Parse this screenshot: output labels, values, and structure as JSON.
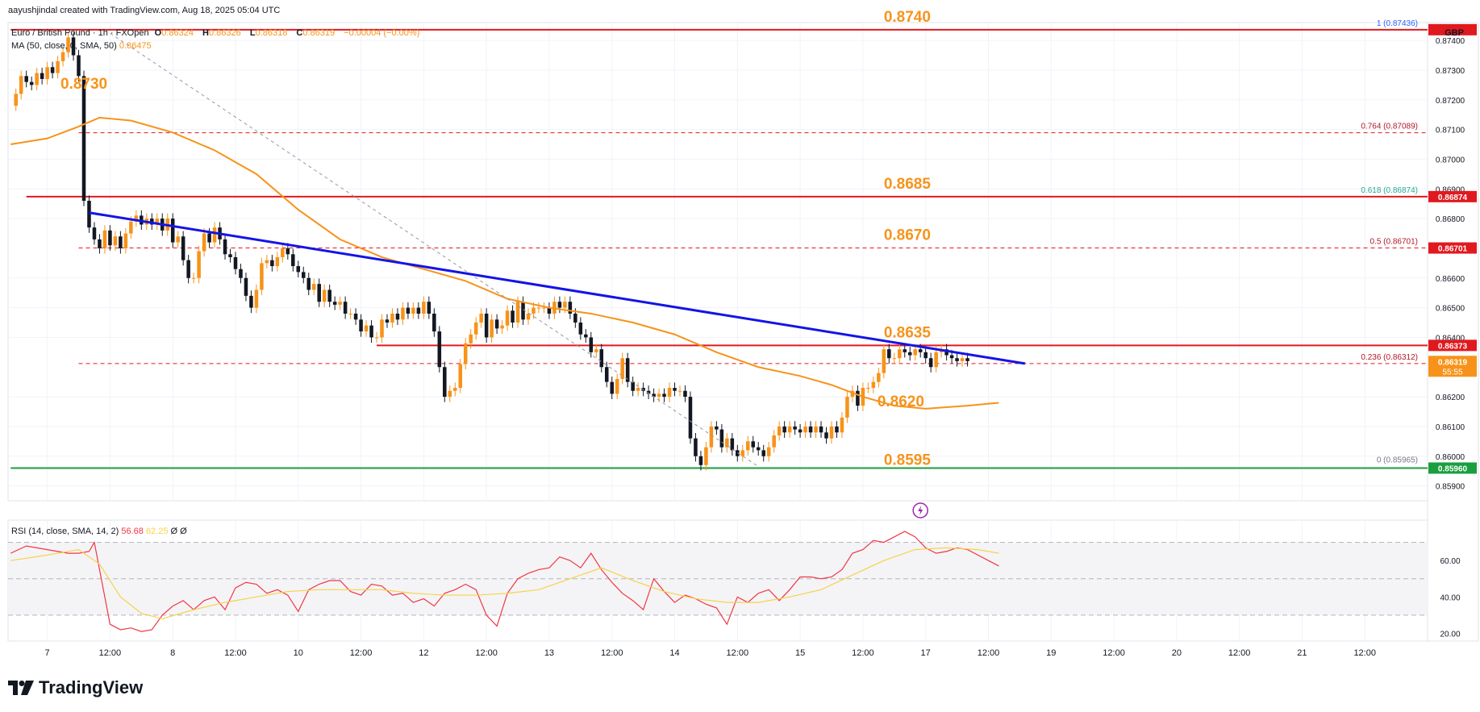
{
  "header": {
    "attribution": "aayushjindal created with TradingView.com, Aug 18, 2025 05:04 UTC",
    "symbol": "Euro / British Pound · 1h · FXOpen",
    "ohlc": {
      "o_label": "O",
      "o": "0.86324",
      "h_label": "H",
      "h": "0.86326",
      "l_label": "L",
      "l": "0.86318",
      "c_label": "C",
      "c": "0.86319",
      "change": "−0.00004 (−0.00%)"
    },
    "ma_label": "MA (50, close, 0, SMA, 50)",
    "ma_value": "0.86475",
    "currency": "GBP"
  },
  "rsi_legend": {
    "label": "RSI (14, close, SMA, 14, 2)",
    "rsi": "56.68",
    "ma": "62.25",
    "x1": "Ø",
    "x2": "Ø"
  },
  "logo": {
    "text": "TradingView"
  },
  "colors": {
    "bull": "#f7931a",
    "bear": "#131722",
    "ma": "#f7931a",
    "resistance": "#e0191f",
    "support": "#1b9e3e",
    "trend": "#1414e6",
    "rsi": "#f23645",
    "rsi_ma": "#f7d24a",
    "level_text": "#f7931a",
    "fib_red": "#b2182b",
    "fib_green": "#22ab94",
    "fib_blue": "#2962ff"
  },
  "chart_data": {
    "type": "candlestick",
    "instrument": "EUR/GBP",
    "timeframe": "1h",
    "ylim": [
      0.8585,
      0.8746
    ],
    "y_ticks": [
      "0.87400",
      "0.87300",
      "0.87200",
      "0.87100",
      "0.87000",
      "0.86900",
      "0.86800",
      "0.86600",
      "0.86500",
      "0.86400",
      "0.86200",
      "0.86100",
      "0.86000",
      "0.85900"
    ],
    "x_ticks": [
      {
        "label": "7",
        "t": 0
      },
      {
        "label": "12:00",
        "t": 12
      },
      {
        "label": "8",
        "t": 24
      },
      {
        "label": "12:00",
        "t": 36
      },
      {
        "label": "10",
        "t": 48
      },
      {
        "label": "12:00",
        "t": 60
      },
      {
        "label": "12",
        "t": 72
      },
      {
        "label": "12:00",
        "t": 84
      },
      {
        "label": "13",
        "t": 96
      },
      {
        "label": "12:00",
        "t": 108
      },
      {
        "label": "14",
        "t": 120
      },
      {
        "label": "12:00",
        "t": 132
      },
      {
        "label": "15",
        "t": 144
      },
      {
        "label": "12:00",
        "t": 156
      },
      {
        "label": "17",
        "t": 168
      },
      {
        "label": "12:00",
        "t": 180
      },
      {
        "label": "19",
        "t": 192
      },
      {
        "label": "12:00",
        "t": 204
      },
      {
        "label": "20",
        "t": 216
      },
      {
        "label": "12:00",
        "t": 228
      },
      {
        "label": "21",
        "t": 240
      },
      {
        "label": "12:00",
        "t": 252
      }
    ],
    "t_range": [
      -7.5,
      264
    ],
    "close_series": [
      0.8718,
      0.8722,
      0.8728,
      0.8726,
      0.8725,
      0.8729,
      0.8727,
      0.8731,
      0.8729,
      0.8733,
      0.8736,
      0.8741,
      0.8735,
      0.8728,
      0.8686,
      0.8677,
      0.8673,
      0.867,
      0.8676,
      0.8671,
      0.8674,
      0.867,
      0.8675,
      0.8679,
      0.8681,
      0.8678,
      0.868,
      0.8678,
      0.868,
      0.8676,
      0.868,
      0.8672,
      0.8674,
      0.8666,
      0.866,
      0.866,
      0.8669,
      0.8675,
      0.8672,
      0.8677,
      0.8673,
      0.8668,
      0.8667,
      0.8663,
      0.866,
      0.8654,
      0.865,
      0.8656,
      0.8665,
      0.8666,
      0.8664,
      0.8667,
      0.867,
      0.8668,
      0.8664,
      0.8662,
      0.866,
      0.8656,
      0.8658,
      0.8652,
      0.8656,
      0.8652,
      0.8651,
      0.8652,
      0.8648,
      0.8648,
      0.8646,
      0.8642,
      0.8644,
      0.864,
      0.864,
      0.8646,
      0.8645,
      0.8648,
      0.8646,
      0.865,
      0.8648,
      0.865,
      0.8648,
      0.8652,
      0.8648,
      0.8642,
      0.863,
      0.862,
      0.8622,
      0.8623,
      0.8631,
      0.8638,
      0.8641,
      0.8645,
      0.8648,
      0.864,
      0.8646,
      0.8643,
      0.8644,
      0.8649,
      0.8645,
      0.8652,
      0.8646,
      0.8648,
      0.865,
      0.865,
      0.865,
      0.8648,
      0.8652,
      0.865,
      0.8652,
      0.8648,
      0.8645,
      0.8641,
      0.864,
      0.8635,
      0.8636,
      0.863,
      0.8625,
      0.8621,
      0.8626,
      0.8633,
      0.8625,
      0.8622,
      0.8623,
      0.8622,
      0.8621,
      0.862,
      0.8621,
      0.862,
      0.8623,
      0.8622,
      0.8622,
      0.862,
      0.8606,
      0.86,
      0.8597,
      0.8603,
      0.861,
      0.8609,
      0.8603,
      0.8606,
      0.8602,
      0.86,
      0.8602,
      0.8605,
      0.8603,
      0.8602,
      0.86,
      0.8603,
      0.8607,
      0.861,
      0.8608,
      0.861,
      0.8609,
      0.8608,
      0.861,
      0.8608,
      0.861,
      0.8608,
      0.8606,
      0.861,
      0.8608,
      0.8613,
      0.862,
      0.8622,
      0.8617,
      0.8623,
      0.8623,
      0.8625,
      0.8628,
      0.8636,
      0.8633,
      0.8633,
      0.8636,
      0.8635,
      0.8634,
      0.8636,
      0.8635,
      0.8633,
      0.863,
      0.8635,
      0.8636,
      0.8634,
      0.8633,
      0.8632,
      0.8633,
      0.8632
    ],
    "ma50_series": [
      [
        -7,
        0.8705
      ],
      [
        0,
        0.8707
      ],
      [
        6,
        0.8711
      ],
      [
        10,
        0.8714
      ],
      [
        16,
        0.8713
      ],
      [
        24,
        0.8709
      ],
      [
        32,
        0.8703
      ],
      [
        40,
        0.8695
      ],
      [
        48,
        0.8683
      ],
      [
        56,
        0.8673
      ],
      [
        64,
        0.8667
      ],
      [
        72,
        0.8663
      ],
      [
        80,
        0.8659
      ],
      [
        88,
        0.8653
      ],
      [
        96,
        0.865
      ],
      [
        104,
        0.8648
      ],
      [
        112,
        0.8645
      ],
      [
        120,
        0.8641
      ],
      [
        128,
        0.8635
      ],
      [
        136,
        0.863
      ],
      [
        144,
        0.8627
      ],
      [
        150,
        0.8624
      ],
      [
        156,
        0.862
      ],
      [
        162,
        0.8617
      ],
      [
        168,
        0.8616
      ],
      [
        176,
        0.8617
      ],
      [
        182,
        0.8618
      ]
    ],
    "rsi_series": [
      [
        -7,
        64
      ],
      [
        -4,
        68
      ],
      [
        0,
        66
      ],
      [
        2,
        65
      ],
      [
        4,
        64
      ],
      [
        6,
        64
      ],
      [
        8,
        65
      ],
      [
        9,
        70
      ],
      [
        10,
        55
      ],
      [
        11,
        40
      ],
      [
        12,
        25
      ],
      [
        14,
        22
      ],
      [
        16,
        23
      ],
      [
        18,
        21
      ],
      [
        20,
        22
      ],
      [
        22,
        30
      ],
      [
        24,
        35
      ],
      [
        26,
        38
      ],
      [
        28,
        33
      ],
      [
        30,
        38
      ],
      [
        32,
        40
      ],
      [
        34,
        33
      ],
      [
        36,
        45
      ],
      [
        38,
        48
      ],
      [
        40,
        47
      ],
      [
        42,
        42
      ],
      [
        44,
        44
      ],
      [
        46,
        41
      ],
      [
        48,
        32
      ],
      [
        50,
        44
      ],
      [
        52,
        47
      ],
      [
        54,
        49
      ],
      [
        56,
        49
      ],
      [
        58,
        43
      ],
      [
        60,
        41
      ],
      [
        62,
        47
      ],
      [
        64,
        46
      ],
      [
        66,
        41
      ],
      [
        68,
        42
      ],
      [
        70,
        37
      ],
      [
        72,
        39
      ],
      [
        74,
        35
      ],
      [
        76,
        42
      ],
      [
        78,
        44
      ],
      [
        80,
        47
      ],
      [
        82,
        44
      ],
      [
        84,
        30
      ],
      [
        86,
        24
      ],
      [
        88,
        42
      ],
      [
        90,
        50
      ],
      [
        92,
        53
      ],
      [
        94,
        55
      ],
      [
        96,
        56
      ],
      [
        98,
        62
      ],
      [
        100,
        60
      ],
      [
        102,
        56
      ],
      [
        104,
        64
      ],
      [
        106,
        55
      ],
      [
        108,
        48
      ],
      [
        110,
        42
      ],
      [
        112,
        38
      ],
      [
        114,
        33
      ],
      [
        116,
        50
      ],
      [
        118,
        43
      ],
      [
        120,
        37
      ],
      [
        122,
        41
      ],
      [
        124,
        39
      ],
      [
        126,
        36
      ],
      [
        128,
        34
      ],
      [
        130,
        25
      ],
      [
        132,
        40
      ],
      [
        134,
        37
      ],
      [
        136,
        42
      ],
      [
        138,
        44
      ],
      [
        140,
        38
      ],
      [
        142,
        44
      ],
      [
        144,
        51
      ],
      [
        146,
        51
      ],
      [
        148,
        50
      ],
      [
        150,
        51
      ],
      [
        152,
        55
      ],
      [
        154,
        64
      ],
      [
        156,
        66
      ],
      [
        158,
        71
      ],
      [
        160,
        70
      ],
      [
        162,
        73
      ],
      [
        164,
        76
      ],
      [
        166,
        73
      ],
      [
        168,
        67
      ],
      [
        170,
        64
      ],
      [
        172,
        65
      ],
      [
        174,
        67
      ],
      [
        176,
        66
      ],
      [
        178,
        63
      ],
      [
        180,
        60
      ],
      [
        182,
        57
      ]
    ],
    "rsi_ma_series": [
      [
        -7,
        60
      ],
      [
        0,
        63
      ],
      [
        6,
        66
      ],
      [
        10,
        58
      ],
      [
        14,
        40
      ],
      [
        18,
        31
      ],
      [
        22,
        28
      ],
      [
        28,
        33
      ],
      [
        34,
        37
      ],
      [
        40,
        40
      ],
      [
        46,
        43
      ],
      [
        52,
        44
      ],
      [
        58,
        44
      ],
      [
        64,
        44
      ],
      [
        70,
        42
      ],
      [
        76,
        41
      ],
      [
        82,
        41
      ],
      [
        88,
        42
      ],
      [
        94,
        44
      ],
      [
        100,
        50
      ],
      [
        106,
        56
      ],
      [
        112,
        49
      ],
      [
        118,
        43
      ],
      [
        124,
        39
      ],
      [
        130,
        37
      ],
      [
        136,
        37
      ],
      [
        142,
        40
      ],
      [
        148,
        44
      ],
      [
        154,
        52
      ],
      [
        160,
        60
      ],
      [
        166,
        66
      ],
      [
        172,
        67
      ],
      [
        178,
        66
      ],
      [
        182,
        64
      ]
    ],
    "rsi_ylim": [
      18,
      80
    ],
    "rsi_ticks": [
      "60.00",
      "40.00",
      "20.00"
    ],
    "rsi_levels": [
      70,
      50,
      30
    ],
    "levels": [
      {
        "text": "0.8740",
        "price": 0.87436,
        "t_from": -7,
        "kind": "resistance",
        "label_t": 160
      },
      {
        "text": "0.8730",
        "price": 0.873,
        "t_from": -1,
        "kind": "marker",
        "label_t": -1
      },
      {
        "text": "0.8685",
        "price": 0.86874,
        "t_from": -4,
        "kind": "resistance",
        "label_t": 160
      },
      {
        "text": "0.8670",
        "price": 0.86701,
        "t_from": 6,
        "kind": "dash",
        "label_t": 160
      },
      {
        "text": "0.8635",
        "price": 0.86373,
        "t_from": 63,
        "kind": "resistance",
        "label_t": 160
      },
      {
        "text": "0.8620",
        "price": 0.862,
        "t_from": null,
        "kind": "ma",
        "label_t": 160
      },
      {
        "text": "0.8595",
        "price": 0.8596,
        "t_from": -7,
        "kind": "support",
        "label_t": 160
      }
    ],
    "fib": [
      {
        "label": "1 (0.87436)",
        "price": 0.87436,
        "color": "#2962ff"
      },
      {
        "label": "0.764 (0.87089)",
        "price": 0.87089,
        "color": "#b2182b"
      },
      {
        "label": "0.618 (0.86874)",
        "price": 0.86874,
        "color": "#22ab94"
      },
      {
        "label": "0.5 (0.86701)",
        "price": 0.86701,
        "color": "#b2182b"
      },
      {
        "label": "0.236 (0.86312)",
        "price": 0.86312,
        "color": "#b2182b"
      },
      {
        "label": "0 (0.85965)",
        "price": 0.85965,
        "color": "#787b86"
      }
    ],
    "price_tags": [
      {
        "text": "0.86874",
        "price": 0.86874,
        "bg": "#e0191f"
      },
      {
        "text": "0.86701",
        "price": 0.86701,
        "bg": "#e0191f"
      },
      {
        "text": "0.86373",
        "price": 0.86373,
        "bg": "#e0191f"
      },
      {
        "text": "0.86319",
        "sub": "55:55",
        "price": 0.86319,
        "bg": "#f7931a"
      },
      {
        "text": "0.85960",
        "price": 0.8596,
        "bg": "#1b9e3e"
      }
    ],
    "trendline": {
      "from": [
        8,
        0.8682
      ],
      "to": [
        187,
        0.86312
      ]
    },
    "fib_diagonal": {
      "from": [
        11,
        0.87436
      ],
      "to": [
        136,
        0.85965
      ]
    },
    "dashed_levels": [
      0.87089,
      0.86701,
      0.86312
    ]
  }
}
